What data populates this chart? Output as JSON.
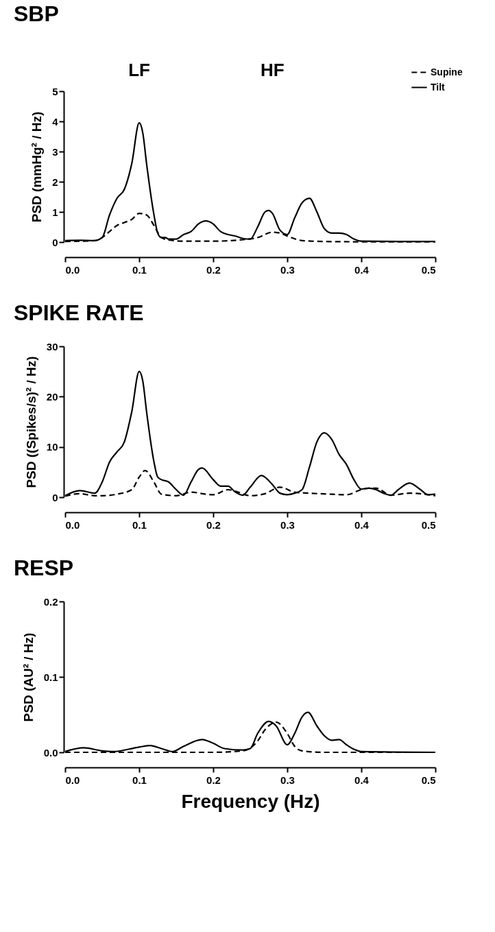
{
  "chart_data": [
    {
      "type": "line",
      "title": "SBP",
      "ylabel": "PSD (mmHg² / Hz)",
      "annotations": [
        "LF",
        "HF"
      ],
      "xlim": [
        0,
        0.5
      ],
      "xticks": [
        "0.0",
        0.1,
        0.2,
        0.3,
        0.4,
        0.5
      ],
      "ylim": [
        0,
        5
      ],
      "yticks": [
        0,
        1,
        2,
        3,
        4,
        5
      ],
      "legend": "top right",
      "grid": false,
      "marker": "none",
      "series": [
        {
          "name": "Supine",
          "color": "#000000",
          "line_style": "dashed",
          "x": [
            0,
            0.04,
            0.05,
            0.06,
            0.07,
            0.08,
            0.09,
            0.1,
            0.11,
            0.12,
            0.13,
            0.14,
            0.16,
            0.2,
            0.24,
            0.26,
            0.28,
            0.29,
            0.3,
            0.32,
            0.35,
            0.4,
            0.5
          ],
          "values": [
            0.02,
            0.05,
            0.15,
            0.35,
            0.55,
            0.65,
            0.75,
            0.95,
            0.9,
            0.55,
            0.15,
            0.07,
            0.03,
            0.03,
            0.08,
            0.15,
            0.33,
            0.3,
            0.2,
            0.05,
            0.02,
            0.01,
            0.01
          ]
        },
        {
          "name": "Tilt",
          "color": "#000000",
          "line_style": "solid",
          "x": [
            0,
            0.02,
            0.04,
            0.05,
            0.06,
            0.07,
            0.08,
            0.09,
            0.1,
            0.105,
            0.11,
            0.12,
            0.125,
            0.13,
            0.135,
            0.14,
            0.15,
            0.16,
            0.17,
            0.18,
            0.19,
            0.2,
            0.21,
            0.22,
            0.23,
            0.24,
            0.25,
            0.26,
            0.27,
            0.275,
            0.28,
            0.29,
            0.3,
            0.31,
            0.32,
            0.33,
            0.34,
            0.35,
            0.36,
            0.37,
            0.38,
            0.39,
            0.4,
            0.45,
            0.5
          ],
          "values": [
            0.05,
            0.06,
            0.05,
            0.15,
            0.9,
            1.45,
            1.75,
            2.6,
            3.95,
            3.6,
            2.6,
            0.9,
            0.3,
            0.15,
            0.15,
            0.1,
            0.1,
            0.25,
            0.35,
            0.6,
            0.7,
            0.6,
            0.35,
            0.25,
            0.2,
            0.12,
            0.1,
            0.5,
            1.0,
            1.05,
            0.95,
            0.4,
            0.25,
            0.8,
            1.3,
            1.45,
            1.0,
            0.45,
            0.3,
            0.3,
            0.25,
            0.1,
            0.03,
            0.02,
            0.02
          ]
        }
      ]
    },
    {
      "type": "line",
      "title": "SPIKE RATE",
      "ylabel": "PSD ((Spikes/s)² / Hz)",
      "xlim": [
        0,
        0.5
      ],
      "xticks": [
        "0.0",
        0.1,
        0.2,
        0.3,
        0.4,
        0.5
      ],
      "ylim": [
        0,
        30
      ],
      "yticks": [
        0,
        10,
        20,
        30
      ],
      "grid": false,
      "marker": "none",
      "series": [
        {
          "color": "#000000",
          "line_style": "dashed",
          "x": [
            0,
            0.02,
            0.04,
            0.05,
            0.07,
            0.09,
            0.1,
            0.108,
            0.12,
            0.13,
            0.15,
            0.17,
            0.19,
            0.2,
            0.22,
            0.23,
            0.25,
            0.27,
            0.29,
            0.31,
            0.33,
            0.36,
            0.38,
            0.4,
            0.41,
            0.42,
            0.44,
            0.465,
            0.5
          ],
          "values": [
            0.2,
            0.7,
            0.3,
            0.3,
            0.6,
            1.5,
            4,
            5.3,
            3,
            0.6,
            0.3,
            1.0,
            0.6,
            0.5,
            1.5,
            1.2,
            0.3,
            0.7,
            2,
            1.0,
            0.8,
            0.6,
            0.5,
            1.5,
            1.8,
            1.8,
            0.4,
            0.8,
            0.3
          ]
        },
        {
          "color": "#000000",
          "line_style": "solid",
          "x": [
            0,
            0.02,
            0.04,
            0.05,
            0.06,
            0.07,
            0.08,
            0.09,
            0.1,
            0.105,
            0.11,
            0.12,
            0.125,
            0.13,
            0.14,
            0.15,
            0.16,
            0.17,
            0.18,
            0.185,
            0.2,
            0.21,
            0.22,
            0.23,
            0.24,
            0.25,
            0.265,
            0.28,
            0.29,
            0.3,
            0.31,
            0.32,
            0.33,
            0.34,
            0.35,
            0.36,
            0.37,
            0.38,
            0.39,
            0.4,
            0.41,
            0.42,
            0.43,
            0.44,
            0.45,
            0.465,
            0.48,
            0.49,
            0.5
          ],
          "values": [
            0.3,
            1.3,
            0.8,
            3,
            7,
            9,
            11,
            17,
            25,
            23,
            17,
            7,
            4,
            3.5,
            3,
            1.5,
            0.4,
            3,
            5.5,
            5.8,
            3.5,
            2.2,
            2.2,
            1,
            0.4,
            2,
            4.3,
            2.5,
            0.8,
            0.5,
            0.8,
            1.5,
            6,
            11,
            12.8,
            11.5,
            8.5,
            6.5,
            3.5,
            1.6,
            1.8,
            1.5,
            0.8,
            0.4,
            1.5,
            2.8,
            1.5,
            0.5,
            0.6
          ]
        }
      ]
    },
    {
      "type": "line",
      "title": "RESP",
      "xlabel": "Frequency (Hz)",
      "ylabel": "PSD (AU² / Hz)",
      "xlim": [
        0,
        0.5
      ],
      "xticks": [
        "0.0",
        0.1,
        0.2,
        0.3,
        0.4,
        0.5
      ],
      "ylim": [
        0,
        0.2
      ],
      "yticks": [
        "0.0",
        0.1,
        0.2
      ],
      "grid": false,
      "marker": "none",
      "series": [
        {
          "color": "#000000",
          "line_style": "dashed",
          "x": [
            0,
            0.2,
            0.24,
            0.26,
            0.27,
            0.285,
            0.3,
            0.31,
            0.32,
            0.35,
            0.5
          ],
          "values": [
            0,
            0,
            0.002,
            0.015,
            0.03,
            0.04,
            0.025,
            0.008,
            0.002,
            0,
            0
          ]
        },
        {
          "color": "#000000",
          "line_style": "solid",
          "x": [
            0,
            0.025,
            0.05,
            0.065,
            0.1,
            0.115,
            0.13,
            0.145,
            0.16,
            0.185,
            0.2,
            0.215,
            0.24,
            0.25,
            0.26,
            0.275,
            0.285,
            0.3,
            0.31,
            0.32,
            0.328,
            0.34,
            0.35,
            0.36,
            0.37,
            0.38,
            0.39,
            0.4,
            0.5
          ],
          "values": [
            0.001,
            0.006,
            0.002,
            0.001,
            0.007,
            0.009,
            0.005,
            0.001,
            0.008,
            0.017,
            0.012,
            0.005,
            0.003,
            0.005,
            0.025,
            0.041,
            0.035,
            0.01,
            0.025,
            0.047,
            0.053,
            0.035,
            0.022,
            0.016,
            0.017,
            0.01,
            0.004,
            0.001,
            0
          ]
        }
      ]
    }
  ]
}
